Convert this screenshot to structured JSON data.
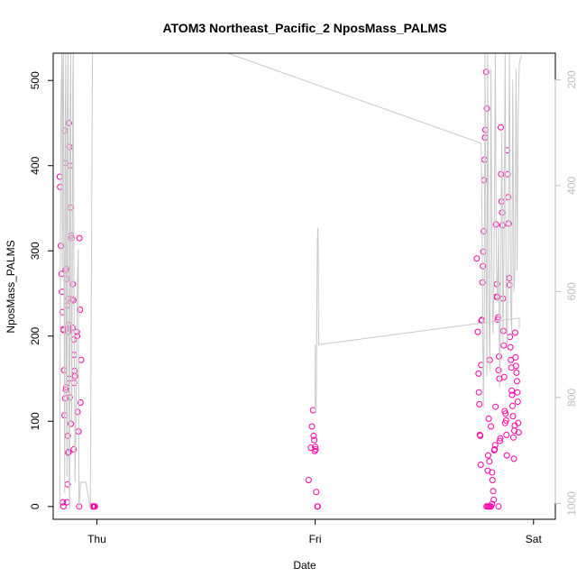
{
  "chart_data": {
    "type": "scatter",
    "title": "ATOM3 Northeast_Pacific_2 NposMass_PALMS",
    "xlabel": "Date",
    "ylabel": "NposMass_PALMS",
    "x_ticks": [
      "Thu",
      "Fri",
      "Sat"
    ],
    "x_unit": "days",
    "xlim": [
      -0.2,
      2.1
    ],
    "ylim": [
      -15,
      532
    ],
    "y_ticks": [
      0,
      100,
      200,
      300,
      400,
      500
    ],
    "y2_ticks": [
      200,
      400,
      600,
      800,
      1000
    ],
    "y2lim": [
      1030,
      150
    ],
    "y2_reversed": true,
    "grid": false,
    "colors": {
      "points": "#ff00aa",
      "altitude_line": "#c8c8c8",
      "axis": "#000000",
      "secondary_axis": "#bdbdbd"
    },
    "series": [
      {
        "marker": "circle",
        "points": [
          [
            -0.17,
            387
          ],
          [
            -0.168,
            375
          ],
          [
            -0.165,
            306
          ],
          [
            -0.162,
            273
          ],
          [
            -0.16,
            252
          ],
          [
            -0.158,
            228
          ],
          [
            -0.155,
            208
          ],
          [
            -0.152,
            207
          ],
          [
            -0.15,
            160
          ],
          [
            -0.148,
            107
          ],
          [
            -0.145,
            127
          ],
          [
            -0.142,
            137
          ],
          [
            -0.14,
            140
          ],
          [
            -0.156,
            5
          ],
          [
            -0.153,
            0
          ],
          [
            -0.148,
            441
          ],
          [
            -0.146,
            403
          ],
          [
            -0.143,
            277
          ],
          [
            -0.14,
            279
          ],
          [
            -0.138,
            267
          ],
          [
            -0.136,
            236
          ],
          [
            -0.134,
            209
          ],
          [
            -0.132,
            205
          ],
          [
            -0.13,
            244
          ],
          [
            -0.128,
            213
          ],
          [
            -0.126,
            150
          ],
          [
            -0.124,
            128
          ],
          [
            -0.133,
            83
          ],
          [
            -0.13,
            64
          ],
          [
            -0.131,
            63
          ],
          [
            -0.134,
            26
          ],
          [
            -0.137,
            5
          ],
          [
            -0.128,
            450
          ],
          [
            -0.125,
            422
          ],
          [
            -0.122,
            400
          ],
          [
            -0.12,
            351
          ],
          [
            -0.118,
            318
          ],
          [
            -0.116,
            315
          ],
          [
            -0.114,
            243
          ],
          [
            -0.112,
            210
          ],
          [
            -0.11,
            261
          ],
          [
            -0.108,
            242
          ],
          [
            -0.106,
            196
          ],
          [
            -0.104,
            178
          ],
          [
            -0.102,
            159
          ],
          [
            -0.1,
            153
          ],
          [
            -0.119,
            97
          ],
          [
            -0.106,
            67
          ],
          [
            -0.104,
            145
          ],
          [
            -0.09,
            200
          ],
          [
            -0.092,
            205
          ],
          [
            -0.088,
            111
          ],
          [
            -0.084,
            88
          ],
          [
            -0.081,
            0
          ],
          [
            -0.08,
            315
          ],
          [
            -0.077,
            231
          ],
          [
            -0.075,
            122
          ],
          [
            -0.072,
            172
          ],
          [
            -0.02,
            0
          ],
          [
            -0.017,
            0
          ],
          [
            -0.014,
            0
          ],
          [
            -0.012,
            0
          ],
          [
            -0.009,
            0
          ],
          [
            0.97,
            31
          ],
          [
            0.98,
            69
          ],
          [
            0.985,
            94
          ],
          [
            0.99,
            113
          ],
          [
            0.993,
            83
          ],
          [
            0.996,
            78
          ],
          [
            0.998,
            65
          ],
          [
            1.0,
            70
          ],
          [
            1.002,
            67
          ],
          [
            1.005,
            17
          ],
          [
            1.01,
            0
          ],
          [
            1.012,
            0
          ],
          [
            1.74,
            291
          ],
          [
            1.745,
            205
          ],
          [
            1.748,
            156
          ],
          [
            1.75,
            134
          ],
          [
            1.752,
            120
          ],
          [
            1.754,
            84
          ],
          [
            1.756,
            83
          ],
          [
            1.758,
            49
          ],
          [
            1.76,
            166
          ],
          [
            1.762,
            218
          ],
          [
            1.764,
            219
          ],
          [
            1.766,
            263
          ],
          [
            1.768,
            282
          ],
          [
            1.77,
            299
          ],
          [
            1.772,
            323
          ],
          [
            1.774,
            383
          ],
          [
            1.776,
            407
          ],
          [
            1.778,
            433
          ],
          [
            1.78,
            442
          ],
          [
            1.783,
            510
          ],
          [
            1.786,
            467
          ],
          [
            1.79,
            42
          ],
          [
            1.792,
            60
          ],
          [
            1.795,
            103
          ],
          [
            1.798,
            53
          ],
          [
            1.8,
            172
          ],
          [
            1.805,
            94
          ],
          [
            1.81,
            40
          ],
          [
            1.812,
            31
          ],
          [
            1.815,
            18
          ],
          [
            1.818,
            8
          ],
          [
            1.82,
            66
          ],
          [
            1.822,
            67
          ],
          [
            1.824,
            72
          ],
          [
            1.826,
            117
          ],
          [
            1.828,
            331
          ],
          [
            1.83,
            246
          ],
          [
            1.832,
            261
          ],
          [
            1.834,
            246
          ],
          [
            1.836,
            219
          ],
          [
            1.838,
            222
          ],
          [
            1.84,
            160
          ],
          [
            1.842,
            176
          ],
          [
            1.844,
            150
          ],
          [
            1.846,
            77
          ],
          [
            1.848,
            80
          ],
          [
            1.85,
            445
          ],
          [
            1.852,
            390
          ],
          [
            1.854,
            358
          ],
          [
            1.856,
            345
          ],
          [
            1.858,
            330
          ],
          [
            1.86,
            244
          ],
          [
            1.862,
            206
          ],
          [
            1.864,
            189
          ],
          [
            1.866,
            152
          ],
          [
            1.868,
            112
          ],
          [
            1.87,
            98
          ],
          [
            1.872,
            109
          ],
          [
            1.874,
            101
          ],
          [
            1.876,
            84
          ],
          [
            1.878,
            60
          ],
          [
            1.88,
            418
          ],
          [
            1.882,
            390
          ],
          [
            1.884,
            363
          ],
          [
            1.886,
            332
          ],
          [
            1.888,
            268
          ],
          [
            1.89,
            260
          ],
          [
            1.892,
            199
          ],
          [
            1.894,
            187
          ],
          [
            1.896,
            172
          ],
          [
            1.898,
            163
          ],
          [
            1.9,
            136
          ],
          [
            1.902,
            131
          ],
          [
            1.904,
            118
          ],
          [
            1.906,
            106
          ],
          [
            1.908,
            81
          ],
          [
            1.91,
            56
          ],
          [
            1.912,
            89
          ],
          [
            1.914,
            95
          ],
          [
            1.916,
            204
          ],
          [
            1.918,
            175
          ],
          [
            1.92,
            165
          ],
          [
            1.922,
            157
          ],
          [
            1.924,
            147
          ],
          [
            1.926,
            134
          ],
          [
            1.928,
            123
          ],
          [
            1.93,
            98
          ],
          [
            1.932,
            87
          ],
          [
            1.785,
            0
          ],
          [
            1.79,
            0
          ],
          [
            1.795,
            0
          ],
          [
            1.8,
            0
          ],
          [
            1.805,
            0
          ],
          [
            1.81,
            3
          ],
          [
            1.84,
            0
          ]
        ]
      }
    ],
    "altitude_line": [
      [
        -0.17,
        1010
      ],
      [
        -0.165,
        260
      ],
      [
        -0.16,
        150
      ],
      [
        -0.158,
        560
      ],
      [
        -0.155,
        200
      ],
      [
        -0.153,
        150
      ],
      [
        -0.15,
        640
      ],
      [
        -0.147,
        980
      ],
      [
        -0.145,
        300
      ],
      [
        -0.142,
        150
      ],
      [
        -0.14,
        720
      ],
      [
        -0.137,
        950
      ],
      [
        -0.135,
        260
      ],
      [
        -0.132,
        150
      ],
      [
        -0.13,
        520
      ],
      [
        -0.127,
        960
      ],
      [
        -0.125,
        1010
      ],
      [
        -0.123,
        300
      ],
      [
        -0.12,
        150
      ],
      [
        -0.118,
        600
      ],
      [
        -0.115,
        850
      ],
      [
        -0.112,
        500
      ],
      [
        -0.11,
        200
      ],
      [
        -0.108,
        150
      ],
      [
        -0.105,
        560
      ],
      [
        -0.1,
        960
      ],
      [
        -0.095,
        820
      ],
      [
        -0.09,
        600
      ],
      [
        -0.085,
        520
      ],
      [
        -0.082,
        1010
      ],
      [
        -0.075,
        960
      ],
      [
        -0.05,
        960
      ],
      [
        -0.03,
        1010
      ],
      [
        -0.025,
        560
      ],
      [
        -0.02,
        150
      ],
      [
        0.6,
        150
      ],
      [
        1.76,
        320
      ],
      [
        1.765,
        500
      ],
      [
        1.77,
        820
      ],
      [
        1.775,
        650
      ],
      [
        1.778,
        150
      ],
      [
        1.782,
        500
      ],
      [
        1.786,
        760
      ],
      [
        1.79,
        150
      ],
      [
        1.795,
        600
      ],
      [
        1.8,
        750
      ],
      [
        1.805,
        180
      ],
      [
        1.81,
        600
      ],
      [
        1.815,
        680
      ],
      [
        1.82,
        500
      ],
      [
        1.825,
        150
      ],
      [
        1.83,
        550
      ],
      [
        1.835,
        620
      ],
      [
        1.84,
        480
      ],
      [
        1.845,
        780
      ],
      [
        1.85,
        560
      ],
      [
        1.855,
        300
      ],
      [
        1.86,
        700
      ],
      [
        1.865,
        500
      ],
      [
        1.87,
        150
      ],
      [
        1.875,
        660
      ],
      [
        1.88,
        700
      ],
      [
        1.885,
        500
      ],
      [
        1.89,
        150
      ],
      [
        1.895,
        620
      ],
      [
        1.9,
        680
      ],
      [
        1.905,
        200
      ],
      [
        1.91,
        600
      ],
      [
        1.915,
        560
      ],
      [
        1.92,
        180
      ],
      [
        1.925,
        560
      ],
      [
        1.93,
        260
      ],
      [
        1.935,
        170
      ],
      [
        1.94,
        160
      ],
      [
        1.945,
        155
      ]
    ],
    "altitude_line_2": [
      [
        1.0,
        700
      ],
      [
        1.0,
        820
      ],
      [
        1.002,
        830
      ],
      [
        1.005,
        820
      ],
      [
        1.01,
        510
      ],
      [
        1.012,
        480
      ],
      [
        1.014,
        520
      ],
      [
        1.016,
        700
      ],
      [
        1.02,
        700
      ],
      [
        1.935,
        650
      ],
      [
        1.935,
        670
      ]
    ]
  }
}
